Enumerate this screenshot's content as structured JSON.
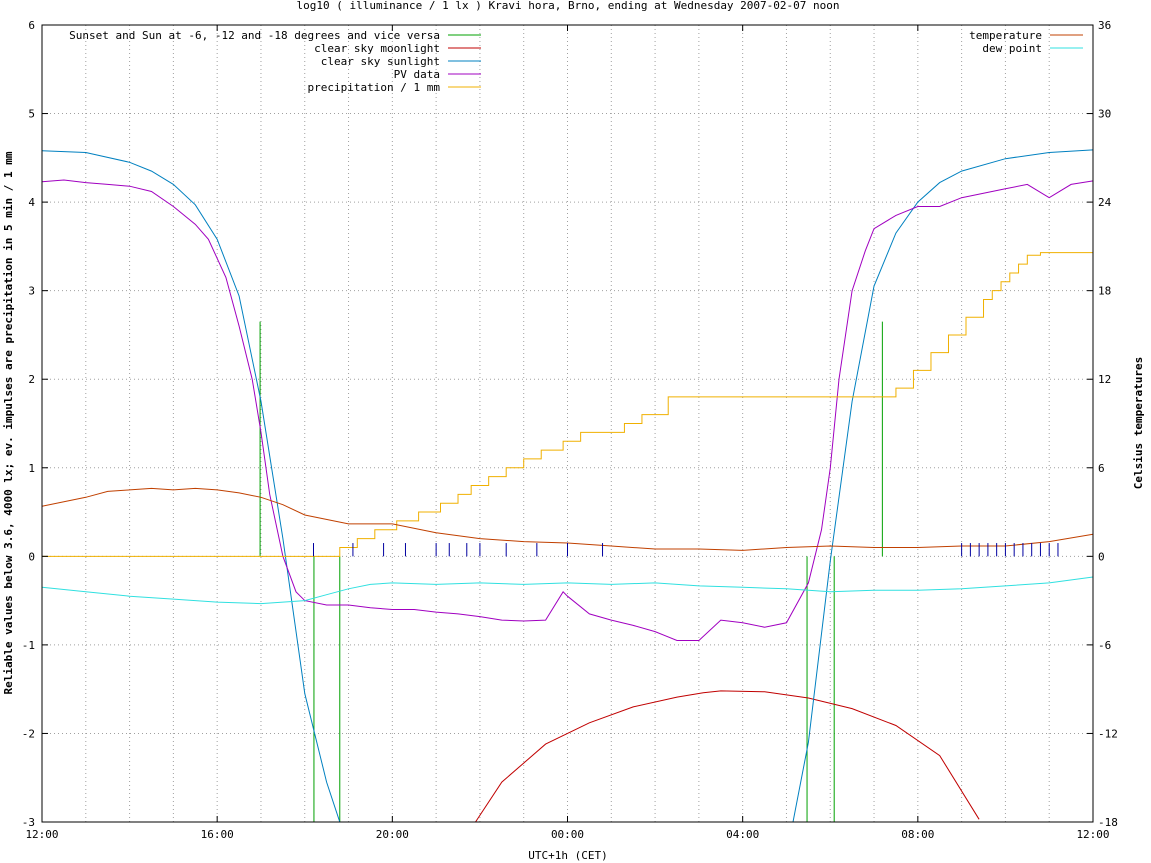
{
  "chart_data": {
    "type": "line",
    "title": "log10 ( illuminance / 1 lx ) Kravi hora, Brno, ending at Wednesday 2007-02-07 noon",
    "xlabel": "UTC+1h (CET)",
    "ylabel": "Reliable values below 3.6, 4000 lx; ev. impulses are precipitation in 5 min / 1 mm",
    "y2label": "Celsius temperatures",
    "x_ticks": [
      "12:00",
      "16:00",
      "20:00",
      "00:00",
      "04:00",
      "08:00",
      "12:00"
    ],
    "x_range_hours": [
      0,
      24
    ],
    "ylim": [
      -3,
      6
    ],
    "y_ticks": [
      "6",
      "5",
      "4",
      "3",
      "2",
      "1",
      "0",
      "-1",
      "-2",
      "-3"
    ],
    "y2lim": [
      -18,
      36
    ],
    "y2_ticks": [
      "36",
      "30",
      "24",
      "18",
      "12",
      "6",
      "0",
      "-6",
      "-12",
      "-18"
    ],
    "grid": true,
    "legend_left_position": "top-left",
    "legend_right_position": "top-right",
    "colors": {
      "sun_events": "#00a000",
      "moonlight": "#c00000",
      "sunlight": "#0080c0",
      "pv": "#a000c0",
      "precip": "#f0b000",
      "temperature": "#c04000",
      "dew_point": "#30e0e0",
      "impulse": "#0000a0"
    },
    "series": [
      {
        "name": "Sunset and Sun at -6, -12 and -18 degrees and vice versa",
        "type": "impulse",
        "x": [
          4.98,
          6.21,
          6.8,
          17.47,
          18.09,
          19.19
        ],
        "values": [
          2.65,
          0.0,
          0.0,
          0.0,
          0.0,
          2.65
        ]
      },
      {
        "name": "clear sky moonlight",
        "x": [
          9.9,
          10.5,
          11.5,
          12.5,
          13.5,
          14.5,
          15.1,
          15.5,
          16.5,
          17.5,
          18.5,
          19.5,
          20.5,
          21.4
        ],
        "values": [
          -3.0,
          -2.55,
          -2.12,
          -1.88,
          -1.7,
          -1.59,
          -1.54,
          -1.52,
          -1.53,
          -1.6,
          -1.72,
          -1.91,
          -2.25,
          -2.97
        ]
      },
      {
        "name": "clear sky sunlight",
        "x": [
          0,
          1,
          2,
          2.5,
          3,
          3.5,
          4.0,
          4.5,
          5.0,
          5.5,
          6.0,
          6.5,
          6.8,
          17.15,
          17.5,
          18.0,
          18.5,
          19.0,
          19.5,
          20.0,
          20.5,
          21,
          22,
          23,
          24
        ],
        "values": [
          4.58,
          4.56,
          4.45,
          4.35,
          4.2,
          3.97,
          3.58,
          2.94,
          1.75,
          0.2,
          -1.55,
          -2.55,
          -3.0,
          -3.0,
          -2.1,
          -0.05,
          1.75,
          3.05,
          3.65,
          4.0,
          4.22,
          4.35,
          4.49,
          4.56,
          4.59
        ]
      },
      {
        "name": "PV data",
        "x": [
          0,
          0.5,
          1.0,
          1.5,
          2.0,
          2.5,
          3.0,
          3.5,
          3.8,
          4.2,
          4.5,
          4.8,
          5.0,
          5.2,
          5.5,
          5.8,
          6.0,
          6.5,
          7.0,
          7.5,
          8.0,
          8.5,
          9.0,
          9.5,
          10.0,
          10.5,
          11.0,
          11.5,
          11.9,
          12.0,
          12.5,
          13.0,
          13.5,
          14.0,
          14.5,
          15.0,
          15.5,
          16.0,
          16.5,
          17.0,
          17.5,
          17.8,
          18.0,
          18.2,
          18.5,
          18.8,
          19.0,
          19.5,
          20.0,
          20.5,
          21.0,
          21.5,
          22.0,
          22.5,
          23.0,
          23.5,
          24.0
        ],
        "values": [
          4.23,
          4.25,
          4.22,
          4.2,
          4.18,
          4.12,
          3.95,
          3.75,
          3.58,
          3.15,
          2.6,
          2.0,
          1.4,
          0.7,
          0.0,
          -0.4,
          -0.5,
          -0.55,
          -0.55,
          -0.58,
          -0.6,
          -0.6,
          -0.63,
          -0.65,
          -0.68,
          -0.72,
          -0.73,
          -0.72,
          -0.4,
          -0.45,
          -0.65,
          -0.72,
          -0.78,
          -0.85,
          -0.95,
          -0.95,
          -0.72,
          -0.75,
          -0.8,
          -0.75,
          -0.3,
          0.3,
          1.0,
          2.0,
          3.0,
          3.45,
          3.7,
          3.85,
          3.95,
          3.95,
          4.05,
          4.1,
          4.15,
          4.2,
          4.05,
          4.2,
          4.24
        ]
      },
      {
        "name": "precipitation / 1 mm",
        "type": "step",
        "x": [
          0,
          6.8,
          7.2,
          7.6,
          8.1,
          8.6,
          9.1,
          9.5,
          9.8,
          10.2,
          10.6,
          11.0,
          11.4,
          11.9,
          12.3,
          13.3,
          13.7,
          14.3,
          19.3,
          19.5,
          19.9,
          20.3,
          20.7,
          21.1,
          21.5,
          21.7,
          21.9,
          22.1,
          22.3,
          22.5,
          22.8,
          24.0
        ],
        "values": [
          0.0,
          0.1,
          0.2,
          0.3,
          0.4,
          0.5,
          0.6,
          0.7,
          0.8,
          0.9,
          1.0,
          1.1,
          1.2,
          1.3,
          1.4,
          1.5,
          1.6,
          1.8,
          1.8,
          1.9,
          2.1,
          2.3,
          2.5,
          2.7,
          2.9,
          3.0,
          3.1,
          3.2,
          3.3,
          3.4,
          3.43,
          3.43
        ]
      },
      {
        "name": "temperature",
        "axis": "y2",
        "x": [
          0,
          0.5,
          1.0,
          1.5,
          2.0,
          2.5,
          3.0,
          3.5,
          4.0,
          4.5,
          5.0,
          5.5,
          6.0,
          7.0,
          8.0,
          9.0,
          10.0,
          11.0,
          12.0,
          13.0,
          14.0,
          15.0,
          16.0,
          17.0,
          18.0,
          19.0,
          20.0,
          21.0,
          22.0,
          23.0,
          24.0
        ],
        "values": [
          3.4,
          3.7,
          4.0,
          4.4,
          4.5,
          4.6,
          4.5,
          4.6,
          4.5,
          4.3,
          4.0,
          3.5,
          2.8,
          2.2,
          2.2,
          1.6,
          1.2,
          1.0,
          0.9,
          0.7,
          0.5,
          0.5,
          0.4,
          0.6,
          0.7,
          0.6,
          0.6,
          0.7,
          0.7,
          1.0,
          1.5
        ]
      },
      {
        "name": "dew point",
        "axis": "y2",
        "x": [
          0,
          1,
          2,
          3,
          4,
          5,
          6,
          6.5,
          7,
          7.5,
          8,
          9,
          10,
          11,
          12,
          13,
          14,
          15,
          16,
          17,
          18,
          19,
          20,
          21,
          22,
          23,
          24
        ],
        "values": [
          -2.1,
          -2.4,
          -2.7,
          -2.9,
          -3.1,
          -3.2,
          -3.0,
          -2.6,
          -2.2,
          -1.9,
          -1.8,
          -1.9,
          -1.8,
          -1.9,
          -1.8,
          -1.9,
          -1.8,
          -2.0,
          -2.1,
          -2.2,
          -2.4,
          -2.3,
          -2.3,
          -2.2,
          -2.0,
          -1.8,
          -1.4
        ]
      },
      {
        "name": "precipitation impulses",
        "type": "impulse",
        "x": [
          6.2,
          7.1,
          7.8,
          8.3,
          9.0,
          9.3,
          9.7,
          10.0,
          10.6,
          11.3,
          12.0,
          12.8,
          21.0,
          21.2,
          21.4,
          21.6,
          21.8,
          22.0,
          22.2,
          22.4,
          22.6,
          22.8,
          23.0,
          23.2
        ],
        "values": [
          0.15,
          0.15,
          0.15,
          0.15,
          0.15,
          0.15,
          0.15,
          0.15,
          0.15,
          0.15,
          0.15,
          0.15,
          0.15,
          0.15,
          0.15,
          0.15,
          0.15,
          0.15,
          0.15,
          0.15,
          0.15,
          0.15,
          0.15,
          0.15
        ]
      }
    ]
  }
}
